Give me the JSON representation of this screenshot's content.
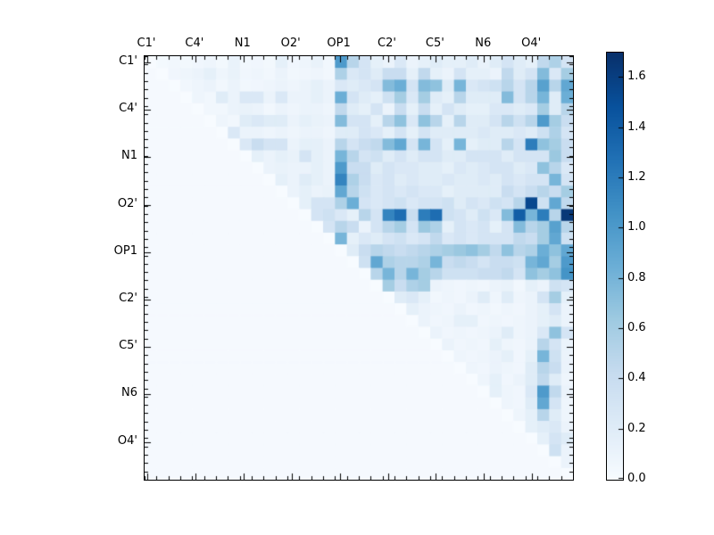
{
  "chart_data": {
    "type": "heatmap",
    "title": "",
    "xlabel": "",
    "ylabel": "",
    "x_tick_labels": [
      "C1'",
      "C4'",
      "N1",
      "O2'",
      "OP1",
      "C2'",
      "C5'",
      "N6",
      "O4'"
    ],
    "y_tick_labels": [
      "C1'",
      "C4'",
      "N1",
      "O2'",
      "OP1",
      "C2'",
      "C5'",
      "N6",
      "O4'"
    ],
    "label_every_n_cells": 4,
    "grid_size": 36,
    "vmin": 0.0,
    "vmax": 1.7,
    "colormap": "Blues",
    "legend_position": "right-colorbar",
    "colorbar_tick_labels": [
      "0.0",
      "0.2",
      "0.4",
      "0.6",
      "0.8",
      "1.0",
      "1.2",
      "1.4",
      "1.6"
    ],
    "colormap_stops": [
      [
        0.0,
        247,
        251,
        255
      ],
      [
        0.125,
        222,
        235,
        247
      ],
      [
        0.25,
        198,
        219,
        239
      ],
      [
        0.375,
        158,
        202,
        225
      ],
      [
        0.5,
        107,
        174,
        214
      ],
      [
        0.625,
        66,
        146,
        198
      ],
      [
        0.75,
        33,
        113,
        181
      ],
      [
        0.875,
        8,
        81,
        156
      ],
      [
        1.0,
        8,
        48,
        107
      ]
    ],
    "matrix": [
      [
        0,
        0.03,
        0.05,
        0.04,
        0.06,
        0.08,
        0.04,
        0.12,
        0.05,
        0.06,
        0.04,
        0.15,
        0.06,
        0.08,
        0.12,
        0.05,
        1.0,
        0.5,
        0.3,
        0.15,
        0.1,
        0.25,
        0.1,
        0.15,
        0.2,
        0.15,
        0.15,
        0.2,
        0.12,
        0.2,
        0.3,
        0.2,
        0.15,
        0.45,
        0.55,
        0.3
      ],
      [
        0.02,
        0,
        0.06,
        0.08,
        0.1,
        0.15,
        0.08,
        0.12,
        0.06,
        0.08,
        0.05,
        0.1,
        0.05,
        0.06,
        0.08,
        0.05,
        0.55,
        0.25,
        0.3,
        0.2,
        0.4,
        0.4,
        0.15,
        0.45,
        0.15,
        0.1,
        0.3,
        0.15,
        0.15,
        0.1,
        0.45,
        0.2,
        0.3,
        0.75,
        0.25,
        0.6
      ],
      [
        0.02,
        0.02,
        0,
        0.05,
        0.08,
        0.1,
        0.05,
        0.1,
        0.05,
        0.06,
        0.08,
        0.1,
        0.08,
        0.1,
        0.15,
        0.1,
        0.25,
        0.2,
        0.25,
        0.3,
        0.75,
        0.85,
        0.3,
        0.75,
        0.7,
        0.2,
        0.8,
        0.25,
        0.3,
        0.35,
        0.5,
        0.3,
        0.5,
        0.95,
        0.5,
        0.9
      ],
      [
        0.02,
        0.02,
        0.02,
        0,
        0.08,
        0.05,
        0.2,
        0.1,
        0.25,
        0.25,
        0.1,
        0.25,
        0.1,
        0.1,
        0.15,
        0.1,
        0.85,
        0.3,
        0.2,
        0.15,
        0.35,
        0.6,
        0.25,
        0.6,
        0.2,
        0.15,
        0.5,
        0.2,
        0.2,
        0.2,
        0.75,
        0.3,
        0.5,
        0.8,
        0.2,
        0.85
      ],
      [
        0.02,
        0.02,
        0.02,
        0.02,
        0,
        0.05,
        0.05,
        0.1,
        0.12,
        0.1,
        0.05,
        0.1,
        0.08,
        0.1,
        0.1,
        0.08,
        0.45,
        0.2,
        0.15,
        0.3,
        0.1,
        0.4,
        0.15,
        0.4,
        0.15,
        0.3,
        0.2,
        0.15,
        0.15,
        0.25,
        0.25,
        0.2,
        0.25,
        0.6,
        0.2,
        0.5
      ],
      [
        0.02,
        0.02,
        0.02,
        0.02,
        0.02,
        0,
        0.08,
        0.05,
        0.2,
        0.25,
        0.2,
        0.2,
        0.1,
        0.15,
        0.12,
        0.1,
        0.75,
        0.3,
        0.3,
        0.15,
        0.5,
        0.7,
        0.25,
        0.7,
        0.5,
        0.15,
        0.5,
        0.2,
        0.2,
        0.3,
        0.5,
        0.35,
        0.5,
        1.0,
        0.6,
        0.4
      ],
      [
        0.02,
        0.02,
        0.02,
        0.02,
        0.02,
        0.02,
        0,
        0.25,
        0.1,
        0.1,
        0.08,
        0.1,
        0.08,
        0.1,
        0.1,
        0.08,
        0.2,
        0.2,
        0.3,
        0.25,
        0.15,
        0.3,
        0.15,
        0.3,
        0.2,
        0.2,
        0.2,
        0.2,
        0.25,
        0.2,
        0.2,
        0.25,
        0.2,
        0.35,
        0.55,
        0.3
      ],
      [
        0.02,
        0.02,
        0.02,
        0.02,
        0.02,
        0.02,
        0.02,
        0,
        0.25,
        0.4,
        0.3,
        0.3,
        0.1,
        0.15,
        0.15,
        0.1,
        0.5,
        0.3,
        0.4,
        0.45,
        0.75,
        0.9,
        0.3,
        0.8,
        0.3,
        0.15,
        0.8,
        0.15,
        0.2,
        0.2,
        0.5,
        0.3,
        1.2,
        0.7,
        0.6,
        0.4
      ],
      [
        0.02,
        0.02,
        0.02,
        0.02,
        0.02,
        0.02,
        0.02,
        0.02,
        0,
        0.15,
        0.1,
        0.15,
        0.12,
        0.3,
        0.15,
        0.1,
        0.8,
        0.5,
        0.3,
        0.35,
        0.2,
        0.3,
        0.2,
        0.3,
        0.3,
        0.2,
        0.2,
        0.3,
        0.3,
        0.3,
        0.2,
        0.3,
        0.3,
        0.3,
        0.65,
        0.4
      ],
      [
        0.02,
        0.02,
        0.02,
        0.02,
        0.02,
        0.02,
        0.02,
        0.02,
        0.02,
        0,
        0.1,
        0.12,
        0.1,
        0.1,
        0.15,
        0.1,
        1.0,
        0.4,
        0.4,
        0.2,
        0.3,
        0.25,
        0.25,
        0.2,
        0.2,
        0.15,
        0.25,
        0.2,
        0.25,
        0.3,
        0.3,
        0.2,
        0.25,
        0.7,
        0.5,
        0.25
      ],
      [
        0.02,
        0.02,
        0.02,
        0.02,
        0.02,
        0.02,
        0.02,
        0.02,
        0.02,
        0.02,
        0,
        0.15,
        0.1,
        0.2,
        0.15,
        0.1,
        1.15,
        0.55,
        0.4,
        0.25,
        0.3,
        0.2,
        0.25,
        0.2,
        0.2,
        0.25,
        0.2,
        0.2,
        0.25,
        0.2,
        0.3,
        0.25,
        0.3,
        0.3,
        0.8,
        0.3
      ],
      [
        0.02,
        0.02,
        0.02,
        0.02,
        0.02,
        0.02,
        0.02,
        0.02,
        0.02,
        0.02,
        0.02,
        0,
        0.1,
        0.15,
        0.1,
        0.12,
        0.9,
        0.5,
        0.35,
        0.25,
        0.3,
        0.25,
        0.3,
        0.25,
        0.25,
        0.15,
        0.2,
        0.2,
        0.2,
        0.2,
        0.4,
        0.3,
        0.4,
        0.5,
        0.4,
        0.6
      ],
      [
        0.02,
        0.02,
        0.02,
        0.02,
        0.02,
        0.02,
        0.02,
        0.02,
        0.02,
        0.02,
        0.02,
        0.02,
        0,
        0.15,
        0.3,
        0.3,
        0.55,
        0.85,
        0.3,
        0.25,
        0.3,
        0.35,
        0.25,
        0.3,
        0.3,
        0.35,
        0.2,
        0.3,
        0.25,
        0.35,
        0.3,
        0.5,
        1.55,
        0.35,
        0.9,
        0.45
      ],
      [
        0.02,
        0.02,
        0.02,
        0.02,
        0.02,
        0.02,
        0.02,
        0.02,
        0.02,
        0.02,
        0.02,
        0.02,
        0.02,
        0,
        0.3,
        0.35,
        0.25,
        0.15,
        0.5,
        0.3,
        1.15,
        1.3,
        0.4,
        1.2,
        1.3,
        0.35,
        0.3,
        0.2,
        0.35,
        0.25,
        0.75,
        1.4,
        0.8,
        1.2,
        0.5,
        1.65
      ],
      [
        0.02,
        0.02,
        0.02,
        0.02,
        0.02,
        0.02,
        0.02,
        0.02,
        0.02,
        0.02,
        0.02,
        0.02,
        0.02,
        0.02,
        0,
        0.3,
        0.5,
        0.4,
        0.1,
        0.3,
        0.5,
        0.6,
        0.3,
        0.65,
        0.55,
        0.15,
        0.3,
        0.25,
        0.3,
        0.15,
        0.3,
        0.75,
        0.5,
        0.6,
        0.95,
        0.5
      ],
      [
        0.02,
        0.02,
        0.02,
        0.02,
        0.02,
        0.02,
        0.02,
        0.02,
        0.02,
        0.02,
        0.02,
        0.02,
        0.02,
        0.02,
        0.02,
        0,
        0.8,
        0.15,
        0.25,
        0.2,
        0.3,
        0.35,
        0.25,
        0.3,
        0.45,
        0.25,
        0.3,
        0.25,
        0.3,
        0.3,
        0.3,
        0.45,
        0.4,
        0.6,
        0.9,
        0.35
      ],
      [
        0.02,
        0.02,
        0.02,
        0.02,
        0.02,
        0.02,
        0.02,
        0.02,
        0.02,
        0.02,
        0.02,
        0.02,
        0.02,
        0.02,
        0.02,
        0.02,
        0,
        0.2,
        0.4,
        0.5,
        0.45,
        0.4,
        0.45,
        0.5,
        0.55,
        0.6,
        0.65,
        0.7,
        0.6,
        0.45,
        0.7,
        0.5,
        0.55,
        0.85,
        0.7,
        0.9
      ],
      [
        0.02,
        0.02,
        0.02,
        0.02,
        0.02,
        0.02,
        0.02,
        0.02,
        0.02,
        0.02,
        0.02,
        0.02,
        0.02,
        0.02,
        0.02,
        0.02,
        0.02,
        0,
        0.35,
        0.9,
        0.55,
        0.5,
        0.5,
        0.55,
        0.8,
        0.4,
        0.45,
        0.4,
        0.3,
        0.4,
        0.4,
        0.35,
        0.8,
        0.9,
        0.6,
        1.0
      ],
      [
        0.02,
        0.02,
        0.02,
        0.02,
        0.02,
        0.02,
        0.02,
        0.02,
        0.02,
        0.02,
        0.02,
        0.02,
        0.02,
        0.02,
        0.02,
        0.02,
        0.02,
        0.02,
        0,
        0.5,
        0.8,
        0.5,
        0.8,
        0.6,
        0.5,
        0.35,
        0.35,
        0.35,
        0.4,
        0.4,
        0.45,
        0.3,
        0.7,
        0.6,
        0.7,
        1.05
      ],
      [
        0.02,
        0.02,
        0.02,
        0.02,
        0.02,
        0.02,
        0.02,
        0.02,
        0.02,
        0.02,
        0.02,
        0.02,
        0.02,
        0.02,
        0.02,
        0.02,
        0.02,
        0.02,
        0.02,
        0,
        0.6,
        0.4,
        0.55,
        0.6,
        0.1,
        0.08,
        0.06,
        0.08,
        0.06,
        0.1,
        0.12,
        0.05,
        0.15,
        0.1,
        0.35,
        0.3
      ],
      [
        0.02,
        0.02,
        0.02,
        0.02,
        0.02,
        0.02,
        0.02,
        0.02,
        0.02,
        0.02,
        0.02,
        0.02,
        0.02,
        0.02,
        0.02,
        0.02,
        0.02,
        0.02,
        0.02,
        0.02,
        0,
        0.2,
        0.25,
        0.15,
        0.05,
        0.08,
        0.06,
        0.1,
        0.2,
        0.08,
        0.2,
        0.08,
        0.1,
        0.3,
        0.6,
        0.15
      ],
      [
        0.02,
        0.02,
        0.02,
        0.02,
        0.02,
        0.02,
        0.02,
        0.02,
        0.02,
        0.02,
        0.02,
        0.02,
        0.02,
        0.02,
        0.02,
        0.02,
        0.02,
        0.02,
        0.02,
        0.02,
        0.02,
        0,
        0.15,
        0.1,
        0.08,
        0.06,
        0.1,
        0.06,
        0.08,
        0.05,
        0.08,
        0.06,
        0.1,
        0.15,
        0.3,
        0.1
      ],
      [
        0.02,
        0.02,
        0.02,
        0.02,
        0.02,
        0.02,
        0.02,
        0.02,
        0.02,
        0.02,
        0.02,
        0.02,
        0.02,
        0.02,
        0.02,
        0.02,
        0.02,
        0.02,
        0.02,
        0.02,
        0.02,
        0.02,
        0,
        0.1,
        0.06,
        0.08,
        0.15,
        0.15,
        0.06,
        0.08,
        0.06,
        0.08,
        0.1,
        0.15,
        0.2,
        0.1
      ],
      [
        0.02,
        0.02,
        0.02,
        0.02,
        0.02,
        0.02,
        0.02,
        0.02,
        0.02,
        0.02,
        0.02,
        0.02,
        0.02,
        0.02,
        0.02,
        0.02,
        0.02,
        0.02,
        0.02,
        0.02,
        0.02,
        0.02,
        0.02,
        0,
        0.1,
        0.06,
        0.08,
        0.06,
        0.08,
        0.1,
        0.2,
        0.08,
        0.1,
        0.25,
        0.7,
        0.3
      ],
      [
        0.02,
        0.02,
        0.02,
        0.02,
        0.02,
        0.02,
        0.02,
        0.02,
        0.02,
        0.02,
        0.02,
        0.02,
        0.02,
        0.02,
        0.02,
        0.02,
        0.02,
        0.02,
        0.02,
        0.02,
        0.02,
        0.02,
        0.02,
        0.02,
        0,
        0.1,
        0.06,
        0.08,
        0.06,
        0.15,
        0.08,
        0.06,
        0.1,
        0.5,
        0.3,
        0.1
      ],
      [
        0.02,
        0.02,
        0.02,
        0.02,
        0.02,
        0.02,
        0.02,
        0.02,
        0.02,
        0.02,
        0.02,
        0.02,
        0.02,
        0.02,
        0.02,
        0.02,
        0.02,
        0.02,
        0.02,
        0.02,
        0.02,
        0.02,
        0.02,
        0.02,
        0.02,
        0,
        0.08,
        0.06,
        0.08,
        0.1,
        0.15,
        0.06,
        0.15,
        0.8,
        0.35,
        0.1
      ],
      [
        0.02,
        0.02,
        0.02,
        0.02,
        0.02,
        0.02,
        0.02,
        0.02,
        0.02,
        0.02,
        0.02,
        0.02,
        0.02,
        0.02,
        0.02,
        0.02,
        0.02,
        0.02,
        0.02,
        0.02,
        0.02,
        0.02,
        0.02,
        0.02,
        0.02,
        0.02,
        0,
        0.08,
        0.06,
        0.1,
        0.08,
        0.06,
        0.2,
        0.5,
        0.4,
        0.1
      ],
      [
        0.02,
        0.02,
        0.02,
        0.02,
        0.02,
        0.02,
        0.02,
        0.02,
        0.02,
        0.02,
        0.02,
        0.02,
        0.02,
        0.02,
        0.02,
        0.02,
        0.02,
        0.02,
        0.02,
        0.02,
        0.02,
        0.02,
        0.02,
        0.02,
        0.02,
        0.02,
        0.02,
        0,
        0.08,
        0.15,
        0.06,
        0.1,
        0.2,
        0.45,
        0.2,
        0.08
      ],
      [
        0.02,
        0.02,
        0.02,
        0.02,
        0.02,
        0.02,
        0.02,
        0.02,
        0.02,
        0.02,
        0.02,
        0.02,
        0.02,
        0.02,
        0.02,
        0.02,
        0.02,
        0.02,
        0.02,
        0.02,
        0.02,
        0.02,
        0.02,
        0.02,
        0.02,
        0.02,
        0.02,
        0.02,
        0,
        0.15,
        0.08,
        0.06,
        0.25,
        1.0,
        0.45,
        0.1
      ],
      [
        0.02,
        0.02,
        0.02,
        0.02,
        0.02,
        0.02,
        0.02,
        0.02,
        0.02,
        0.02,
        0.02,
        0.02,
        0.02,
        0.02,
        0.02,
        0.02,
        0.02,
        0.02,
        0.02,
        0.02,
        0.02,
        0.02,
        0.02,
        0.02,
        0.02,
        0.02,
        0.02,
        0.02,
        0.02,
        0,
        0.08,
        0.06,
        0.2,
        0.9,
        0.3,
        0.08
      ],
      [
        0.02,
        0.02,
        0.02,
        0.02,
        0.02,
        0.02,
        0.02,
        0.02,
        0.02,
        0.02,
        0.02,
        0.02,
        0.02,
        0.02,
        0.02,
        0.02,
        0.02,
        0.02,
        0.02,
        0.02,
        0.02,
        0.02,
        0.02,
        0.02,
        0.02,
        0.02,
        0.02,
        0.02,
        0.02,
        0.02,
        0,
        0.08,
        0.15,
        0.5,
        0.2,
        0.08
      ],
      [
        0.02,
        0.02,
        0.02,
        0.02,
        0.02,
        0.02,
        0.02,
        0.02,
        0.02,
        0.02,
        0.02,
        0.02,
        0.02,
        0.02,
        0.02,
        0.02,
        0.02,
        0.02,
        0.02,
        0.02,
        0.02,
        0.02,
        0.02,
        0.02,
        0.02,
        0.02,
        0.02,
        0.02,
        0.02,
        0.02,
        0.02,
        0,
        0.15,
        0.2,
        0.25,
        0.1
      ],
      [
        0.02,
        0.02,
        0.02,
        0.02,
        0.02,
        0.02,
        0.02,
        0.02,
        0.02,
        0.02,
        0.02,
        0.02,
        0.02,
        0.02,
        0.02,
        0.02,
        0.02,
        0.02,
        0.02,
        0.02,
        0.02,
        0.02,
        0.02,
        0.02,
        0.02,
        0.02,
        0.02,
        0.02,
        0.02,
        0.02,
        0.02,
        0.02,
        0,
        0.15,
        0.3,
        0.2
      ],
      [
        0.02,
        0.02,
        0.02,
        0.02,
        0.02,
        0.02,
        0.02,
        0.02,
        0.02,
        0.02,
        0.02,
        0.02,
        0.02,
        0.02,
        0.02,
        0.02,
        0.02,
        0.02,
        0.02,
        0.02,
        0.02,
        0.02,
        0.02,
        0.02,
        0.02,
        0.02,
        0.02,
        0.02,
        0.02,
        0.02,
        0.02,
        0.02,
        0.02,
        0,
        0.35,
        0.1
      ],
      [
        0.02,
        0.02,
        0.02,
        0.02,
        0.02,
        0.02,
        0.02,
        0.02,
        0.02,
        0.02,
        0.02,
        0.02,
        0.02,
        0.02,
        0.02,
        0.02,
        0.02,
        0.02,
        0.02,
        0.02,
        0.02,
        0.02,
        0.02,
        0.02,
        0.02,
        0.02,
        0.02,
        0.02,
        0.02,
        0.02,
        0.02,
        0.02,
        0.02,
        0.02,
        0,
        0.1
      ],
      [
        0.02,
        0.02,
        0.02,
        0.02,
        0.02,
        0.02,
        0.02,
        0.02,
        0.02,
        0.02,
        0.02,
        0.02,
        0.02,
        0.02,
        0.02,
        0.02,
        0.02,
        0.02,
        0.02,
        0.02,
        0.02,
        0.02,
        0.02,
        0.02,
        0.02,
        0.02,
        0.02,
        0.02,
        0.02,
        0.02,
        0.02,
        0.02,
        0.02,
        0.02,
        0.02,
        0
      ]
    ]
  },
  "colors": {
    "background": "#ffffff",
    "frame": "#000000",
    "text": "#000000"
  }
}
